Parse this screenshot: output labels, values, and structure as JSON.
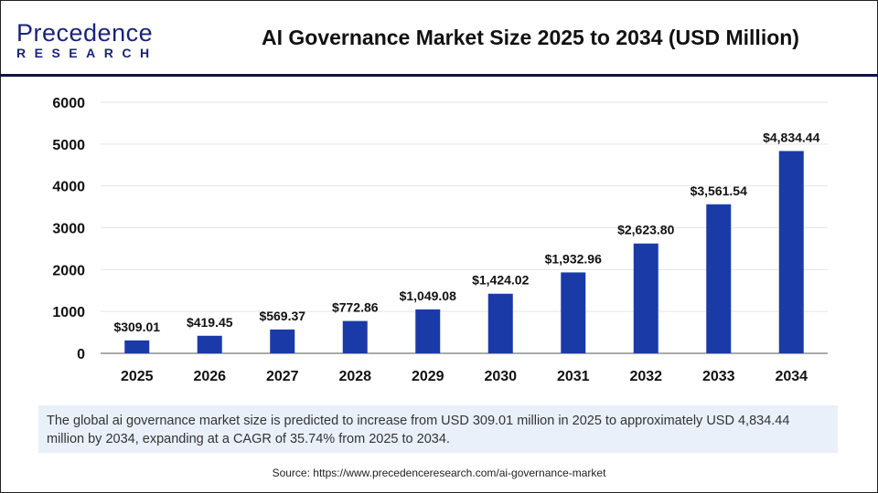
{
  "header": {
    "logo_main": "Precedence",
    "logo_sub": "RESEARCH",
    "title": "AI Governance Market  Size 2025 to 2034 (USD Million)"
  },
  "chart_data": {
    "type": "bar",
    "title": "AI Governance Market  Size 2025 to 2034 (USD Million)",
    "categories": [
      "2025",
      "2026",
      "2027",
      "2028",
      "2029",
      "2030",
      "2031",
      "2032",
      "2033",
      "2034"
    ],
    "values": [
      309.01,
      419.45,
      569.37,
      772.86,
      1049.08,
      1424.02,
      1932.96,
      2623.8,
      3561.54,
      4834.44
    ],
    "data_labels": [
      "$309.01",
      "$419.45",
      "$569.37",
      "$772.86",
      "$1,049.08",
      "$1,424.02",
      "$1,932.96",
      "$2,623.80",
      "$3,561.54",
      "$4,834.44"
    ],
    "yticks": [
      "0",
      "1000",
      "2000",
      "3000",
      "4000",
      "5000",
      "6000"
    ],
    "ylim": [
      0,
      6000
    ],
    "grid": true,
    "bar_color": "#1a3aa8"
  },
  "caption": "The global ai governance market  size is predicted to increase from USD 309.01 million in 2025 to approximately USD 4,834.44 million by 2034, expanding at a CAGR of 35.74% from 2025 to 2034.",
  "source": "Source: https://www.precedenceresearch.com/ai-governance-market"
}
